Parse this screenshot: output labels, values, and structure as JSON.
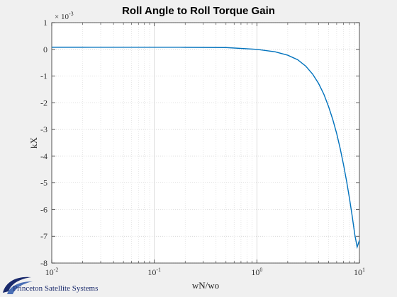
{
  "chart_data": {
    "type": "line",
    "title": "Roll Angle to Roll Torque Gain",
    "xlabel": "wN/wo",
    "ylabel": "kX",
    "exponent_label": "× 10",
    "exponent_power": "-3",
    "x_scale": "log",
    "xlim": [
      0.01,
      10
    ],
    "ylim": [
      -8,
      1
    ],
    "x_ticks": [
      {
        "value": 0.01,
        "base": "10",
        "exp": "-2"
      },
      {
        "value": 0.1,
        "base": "10",
        "exp": "-1"
      },
      {
        "value": 1,
        "base": "10",
        "exp": "0"
      },
      {
        "value": 10,
        "base": "10",
        "exp": "1"
      }
    ],
    "y_ticks": [
      {
        "value": 1,
        "label": "1"
      },
      {
        "value": 0,
        "label": "0"
      },
      {
        "value": -1,
        "label": "-1"
      },
      {
        "value": -2,
        "label": "-2"
      },
      {
        "value": -3,
        "label": "-3"
      },
      {
        "value": -4,
        "label": "-4"
      },
      {
        "value": -5,
        "label": "-5"
      },
      {
        "value": -6,
        "label": "-6"
      },
      {
        "value": -7,
        "label": "-7"
      },
      {
        "value": -8,
        "label": "-8"
      }
    ],
    "grid": true,
    "minor_grid": true,
    "line_color": "#0072bd",
    "series": [
      {
        "x": [
          0.01,
          0.02,
          0.05,
          0.1,
          0.2,
          0.5,
          1.0,
          1.5,
          2.0,
          2.5,
          3.0,
          3.5,
          4.0,
          4.5,
          5.0,
          5.5,
          6.0,
          6.5,
          7.0,
          7.5,
          8.0,
          8.5,
          9.0,
          9.5,
          10.0
        ],
        "y": [
          0.08,
          0.08,
          0.079,
          0.079,
          0.077,
          0.067,
          0.0,
          -0.09,
          -0.22,
          -0.39,
          -0.63,
          -0.93,
          -1.28,
          -1.68,
          -2.14,
          -2.63,
          -3.15,
          -3.72,
          -4.32,
          -4.94,
          -5.58,
          -6.24,
          -6.92,
          -7.4,
          -7.15
        ]
      }
    ]
  },
  "logo": {
    "text": "Princeton Satellite Systems",
    "color": "#1a2a6c"
  }
}
